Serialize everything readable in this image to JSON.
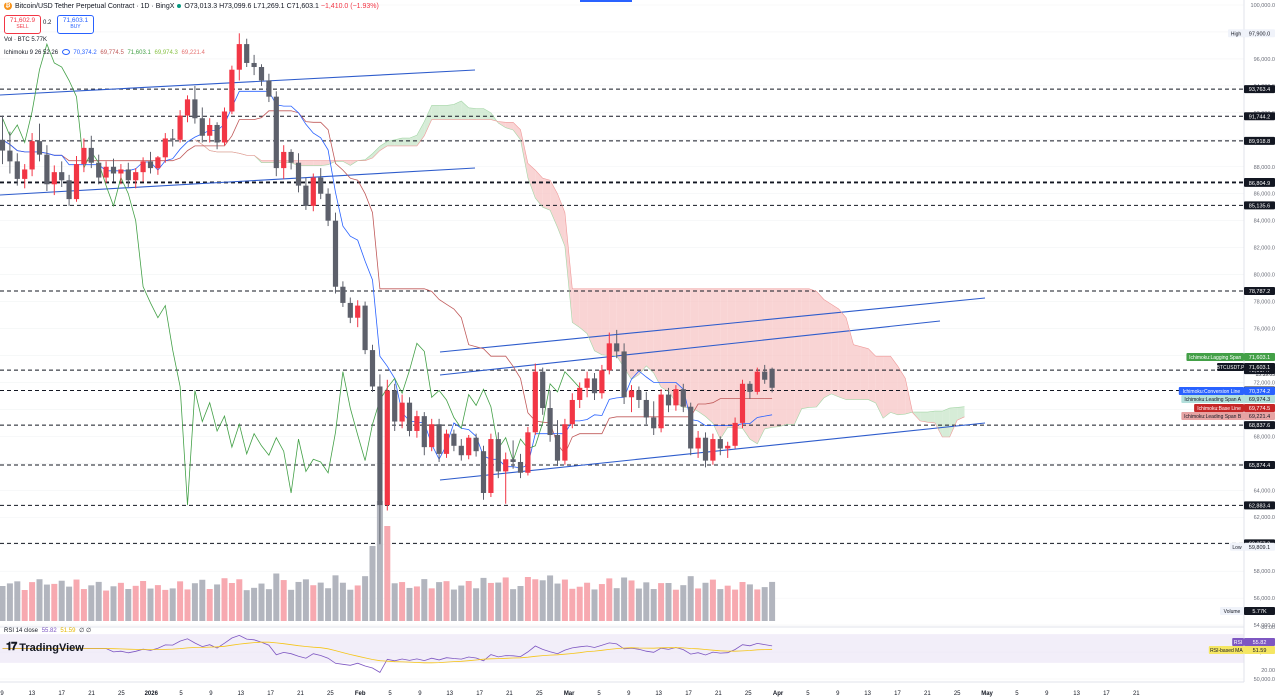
{
  "header": {
    "symbol_icon": "bitcoin-icon",
    "title": "Bitcoin/USD Tether Perpetual Contract · 1D · BingX",
    "ohlc": [
      "O73,013.3",
      "H73,099.6",
      "L71,269.1",
      "C71,603.1",
      "−1,410.0 (−1.93%)"
    ]
  },
  "trade": {
    "sell_price": "71,602.9",
    "sell_label": "SELL",
    "spread": "0.2",
    "buy_price": "71,603.1",
    "buy_label": "BUY"
  },
  "indicators": {
    "vol": "Vol · BTC  5.77K",
    "ichimoku_name": "Ichimoku 9 26 52 26",
    "ichimoku_values": [
      "70,374.2",
      "69,774.5",
      "71,603.1",
      "69,974.3",
      "69,221.4"
    ],
    "rsi_name": "RSI 14 close",
    "rsi_values": [
      "55.82",
      "51.59"
    ]
  },
  "branding": {
    "logo_text": "TradingView"
  },
  "colors": {
    "up": "#f23645",
    "down": "#5d606b",
    "vol_up": "#f7a9b0",
    "vol_down": "#b2b5be",
    "conversion": "#2962ff",
    "base": "#c05a5a",
    "lagging": "#43a047",
    "cloud_bear": "#f7c6c6",
    "cloud_bull": "#c8e6c9",
    "channel": "#2e5ccc",
    "rsi": "#7e57c2",
    "rsi_ma": "#f5c518"
  },
  "price_axis": {
    "ticks": [
      "100,000.0",
      "98,000.0",
      "96,000.0",
      "94,000.0",
      "92,000.0",
      "90,000.0",
      "88,000.0",
      "86,000.0",
      "84,000.0",
      "82,000.0",
      "80,000.0",
      "78,000.0",
      "76,000.0",
      "74,000.0",
      "72,000.0",
      "70,000.0",
      "68,000.0",
      "66,000.0",
      "64,000.0",
      "62,000.0",
      "60,000.0",
      "58,000.0",
      "56,000.0",
      "54,000.0",
      "52,000.0",
      "50,000.0"
    ],
    "high": {
      "label": "High",
      "value": "97,900.0"
    },
    "low": {
      "label": "Low",
      "value": "59,809.1"
    }
  },
  "levels": [
    "93,763.4",
    "91,744.2",
    "89,918.8",
    "86,867.2",
    "86,804.9",
    "85,135.6",
    "78,787.2",
    "72,917.7",
    "71,403.5",
    "68,837.6",
    "65,874.4",
    "62,883.4",
    "60,057.2"
  ],
  "tags": [
    {
      "label": "Ichimoku:Lagging Span",
      "value": "71,603.1"
    },
    {
      "label": "BTCUSDT.P",
      "value": "71,603.1",
      "sub": "15:39:05"
    },
    {
      "label": "Ichimoku:Conversion Line",
      "value": "70,374.2"
    },
    {
      "label": "Ichimoku:Leading Span A",
      "value": "69,974.3"
    },
    {
      "label": "Ichimoku:Base Line",
      "value": "69,774.5"
    },
    {
      "label": "Ichimoku:Leading Span B",
      "value": "69,221.4"
    }
  ],
  "volume_tag": {
    "label": "Volume",
    "value": "5.77K"
  },
  "rsi_tags": [
    {
      "label": "RSI",
      "value": "55.82"
    },
    {
      "label": "RSI-based MA",
      "value": "51.59"
    }
  ],
  "rsi_axis": [
    "80.00",
    "50.00",
    "20.00"
  ],
  "time_axis": [
    "9",
    "13",
    "17",
    "21",
    "25",
    "2026",
    "5",
    "9",
    "13",
    "17",
    "21",
    "25",
    "Feb",
    "5",
    "9",
    "13",
    "17",
    "21",
    "25",
    "Mar",
    "5",
    "9",
    "13",
    "17",
    "21",
    "25",
    "Apr",
    "5",
    "9",
    "13",
    "17",
    "21",
    "25",
    "May",
    "5",
    "9",
    "13",
    "17",
    "21"
  ],
  "chart_data": {
    "type": "candlestick",
    "title": "Bitcoin/USD Tether Perpetual Contract · 1D · BingX",
    "ylim": [
      50000,
      100000
    ],
    "candles": [
      [
        90000,
        91800,
        88200,
        89200
      ],
      [
        89200,
        90600,
        87500,
        88400
      ],
      [
        88400,
        89000,
        86600,
        87100
      ],
      [
        87100,
        88200,
        86400,
        87800
      ],
      [
        87800,
        90500,
        87300,
        89900
      ],
      [
        89900,
        91200,
        88400,
        88900
      ],
      [
        88900,
        89600,
        86200,
        86700
      ],
      [
        86700,
        88100,
        85900,
        87600
      ],
      [
        87600,
        88400,
        86500,
        87000
      ],
      [
        87000,
        87400,
        85100,
        85600
      ],
      [
        85600,
        88800,
        85400,
        88200
      ],
      [
        88200,
        90100,
        87600,
        89400
      ],
      [
        89400,
        90300,
        87900,
        88300
      ],
      [
        88300,
        88900,
        86700,
        87200
      ],
      [
        87200,
        88400,
        86800,
        88000
      ],
      [
        88000,
        88600,
        86900,
        87500
      ],
      [
        87500,
        88200,
        86700,
        87800
      ],
      [
        87800,
        88300,
        86500,
        87000
      ],
      [
        87000,
        87900,
        86400,
        87600
      ],
      [
        87600,
        88700,
        86900,
        88400
      ],
      [
        88400,
        89100,
        87500,
        87900
      ],
      [
        87900,
        88800,
        87400,
        88700
      ],
      [
        88700,
        90500,
        88300,
        90100
      ],
      [
        90100,
        90800,
        89500,
        90000
      ],
      [
        90000,
        92200,
        89800,
        91800
      ],
      [
        91800,
        93300,
        91300,
        93000
      ],
      [
        93000,
        94000,
        91200,
        91600
      ],
      [
        91600,
        92400,
        89800,
        90300
      ],
      [
        90300,
        91600,
        89800,
        91100
      ],
      [
        91100,
        91300,
        89300,
        89800
      ],
      [
        89800,
        92400,
        89600,
        92100
      ],
      [
        92100,
        95500,
        91900,
        95200
      ],
      [
        95200,
        97900,
        94400,
        97100
      ],
      [
        97100,
        97500,
        95400,
        95700
      ],
      [
        95700,
        96300,
        94800,
        95400
      ],
      [
        95400,
        95600,
        94000,
        94400
      ],
      [
        94400,
        94900,
        92800,
        93200
      ],
      [
        93200,
        93600,
        87300,
        87900
      ],
      [
        87900,
        89600,
        87100,
        89100
      ],
      [
        89100,
        89300,
        87800,
        88300
      ],
      [
        88300,
        89000,
        86100,
        86600
      ],
      [
        86600,
        87200,
        84800,
        85100
      ],
      [
        85100,
        87500,
        84700,
        87200
      ],
      [
        87200,
        87900,
        85600,
        86000
      ],
      [
        86000,
        86400,
        83600,
        84000
      ],
      [
        84000,
        84600,
        78600,
        79100
      ],
      [
        79100,
        79500,
        77600,
        77900
      ],
      [
        77900,
        78300,
        76400,
        76800
      ],
      [
        76800,
        78100,
        76100,
        77700
      ],
      [
        77700,
        78000,
        74100,
        74400
      ],
      [
        74400,
        74800,
        71300,
        71700
      ],
      [
        71700,
        72600,
        60000,
        62900
      ],
      [
        62900,
        72200,
        62500,
        71400
      ],
      [
        71400,
        71900,
        68400,
        69100
      ],
      [
        69100,
        71100,
        68600,
        70500
      ],
      [
        70500,
        70900,
        68000,
        68400
      ],
      [
        68400,
        69900,
        67900,
        69500
      ],
      [
        69500,
        69800,
        66600,
        67200
      ],
      [
        67200,
        69300,
        66900,
        68900
      ],
      [
        68900,
        69300,
        66100,
        66700
      ],
      [
        66700,
        68500,
        66400,
        68200
      ],
      [
        68200,
        68500,
        66900,
        67300
      ],
      [
        67300,
        67800,
        66200,
        66600
      ],
      [
        66600,
        68100,
        66300,
        67900
      ],
      [
        67900,
        68200,
        66500,
        66900
      ],
      [
        66900,
        67300,
        63300,
        63800
      ],
      [
        63800,
        68200,
        63500,
        67800
      ],
      [
        67800,
        68300,
        64900,
        65400
      ],
      [
        65400,
        66800,
        63000,
        66300
      ],
      [
        66300,
        67700,
        65600,
        66100
      ],
      [
        66100,
        66700,
        64900,
        65300
      ],
      [
        65300,
        68700,
        65100,
        68300
      ],
      [
        68300,
        73400,
        68100,
        72800
      ],
      [
        72800,
        73100,
        69600,
        70100
      ],
      [
        70100,
        71400,
        67600,
        68100
      ],
      [
        68100,
        69200,
        65800,
        66200
      ],
      [
        66200,
        69300,
        65900,
        68900
      ],
      [
        68900,
        71200,
        68600,
        70700
      ],
      [
        70700,
        72000,
        70100,
        71600
      ],
      [
        71600,
        72800,
        70900,
        72300
      ],
      [
        72300,
        72700,
        70700,
        71200
      ],
      [
        71200,
        73300,
        70800,
        72900
      ],
      [
        72900,
        75700,
        72600,
        74900
      ],
      [
        74900,
        75900,
        73800,
        74300
      ],
      [
        74300,
        74900,
        70400,
        70900
      ],
      [
        70900,
        71800,
        69800,
        71400
      ],
      [
        71400,
        71700,
        70100,
        70700
      ],
      [
        70700,
        71300,
        68900,
        69400
      ],
      [
        69400,
        70600,
        68100,
        68600
      ],
      [
        68600,
        71500,
        68300,
        71100
      ],
      [
        71100,
        71600,
        69800,
        70300
      ],
      [
        70300,
        71800,
        69900,
        71500
      ],
      [
        71500,
        71900,
        69800,
        70200
      ],
      [
        70200,
        70500,
        66600,
        67100
      ],
      [
        67100,
        68400,
        66400,
        67900
      ],
      [
        67900,
        68300,
        65700,
        66200
      ],
      [
        66200,
        68200,
        65900,
        67800
      ],
      [
        67800,
        68000,
        66600,
        67100
      ],
      [
        67100,
        67600,
        66400,
        67300
      ],
      [
        67300,
        69400,
        67100,
        69000
      ],
      [
        69000,
        72200,
        68600,
        71900
      ],
      [
        71900,
        72100,
        70800,
        71300
      ],
      [
        71300,
        73100,
        71100,
        72800
      ],
      [
        72800,
        73300,
        71900,
        72200
      ],
      [
        73013.3,
        73099.6,
        71269.1,
        71603.1
      ]
    ],
    "rsi_current": 55.82,
    "rsi_ma_current": 51.59
  }
}
